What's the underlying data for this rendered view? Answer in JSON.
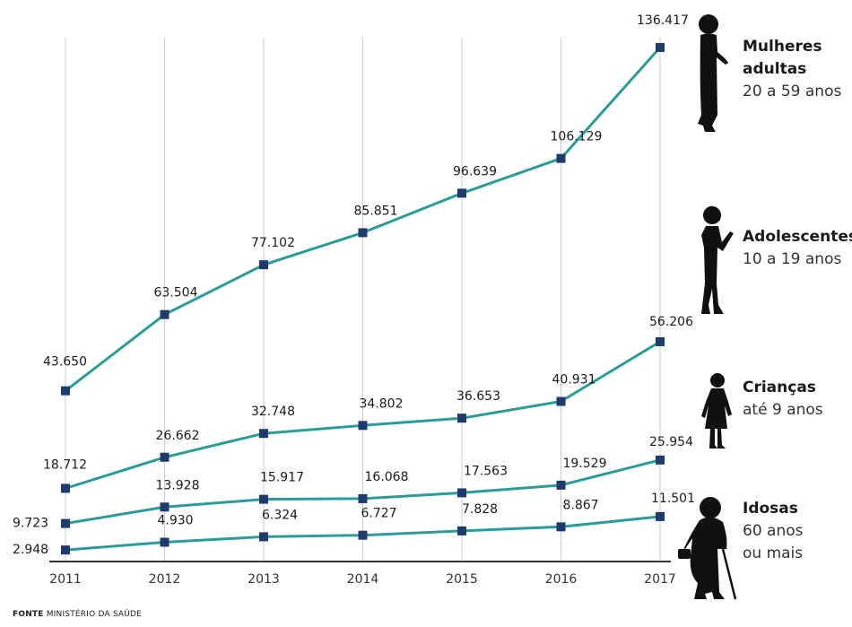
{
  "chart_data": {
    "type": "line",
    "x": [
      "2011",
      "2012",
      "2013",
      "2014",
      "2015",
      "2016",
      "2017"
    ],
    "series": [
      {
        "name_lines": [
          "Mulheres",
          "adultas"
        ],
        "sub_lines": [
          "20 a 59 anos"
        ],
        "values": [
          43650,
          63504,
          77102,
          85851,
          96639,
          106129,
          136417
        ],
        "labels": [
          "43.650",
          "63.504",
          "77.102",
          "85.851",
          "96.639",
          "106.129",
          "136.417"
        ]
      },
      {
        "name_lines": [
          "Adolescentes"
        ],
        "sub_lines": [
          "10 a 19 anos"
        ],
        "values": [
          18712,
          26662,
          32748,
          34802,
          36653,
          40931,
          56206
        ],
        "labels": [
          "18.712",
          "26.662",
          "32.748",
          "34.802",
          "36.653",
          "40.931",
          "56.206"
        ]
      },
      {
        "name_lines": [
          "Crianças"
        ],
        "sub_lines": [
          "até 9 anos"
        ],
        "values": [
          9723,
          13928,
          15917,
          16068,
          17563,
          19529,
          25954
        ],
        "labels": [
          "9.723",
          "13.928",
          "15.917",
          "16.068",
          "17.563",
          "19.529",
          "25.954"
        ]
      },
      {
        "name_lines": [
          "Idosas"
        ],
        "sub_lines": [
          "60 anos",
          "ou mais"
        ],
        "values": [
          2948,
          4930,
          6324,
          6727,
          7828,
          8867,
          11501
        ],
        "labels": [
          "2.948",
          "4.930",
          "6.324",
          "6.727",
          "7.828",
          "8.867",
          "11.501"
        ]
      }
    ],
    "colors": {
      "line": "#2a9d9a",
      "marker": "#1e3a6e",
      "grid": "#cccccc",
      "axis": "#333333"
    },
    "grid": "vertical",
    "legend": "right"
  },
  "icons": [
    "woman-adult-silhouette-icon",
    "adolescent-silhouette-icon",
    "child-silhouette-icon",
    "elderly-woman-cane-icon"
  ],
  "source": {
    "prefix": "FONTE",
    "text": "MINISTÉRIO DA SAÚDE"
  }
}
